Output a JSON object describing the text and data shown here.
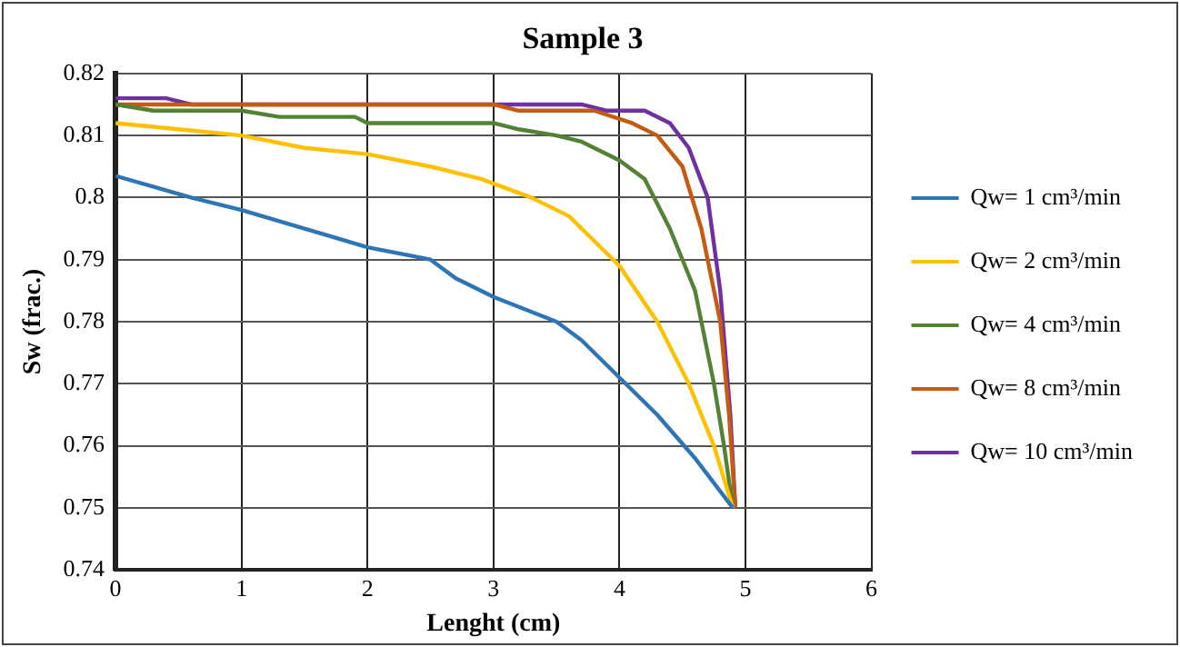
{
  "chart_data": {
    "type": "line",
    "title": "Sample 3",
    "xlabel": "Lenght (cm)",
    "ylabel": "Sw (frac.)",
    "xlim": [
      0,
      6
    ],
    "xticks": [
      0,
      1,
      2,
      3,
      4,
      5,
      6
    ],
    "ylim": [
      0.74,
      0.82
    ],
    "yticks": [
      0.74,
      0.75,
      0.76,
      0.77,
      0.78,
      0.79,
      0.8,
      0.81,
      0.82
    ],
    "grid": true,
    "legend": "right",
    "marker": "none",
    "series": [
      {
        "name": "Qw= 1 cm³/min",
        "color": "#2e75b6",
        "x": [
          0,
          0.6,
          1,
          1.5,
          2,
          2.5,
          2.7,
          3,
          3.5,
          3.7,
          4,
          4.3,
          4.6,
          4.9
        ],
        "values": [
          0.8035,
          0.8,
          0.798,
          0.795,
          0.792,
          0.79,
          0.787,
          0.784,
          0.78,
          0.777,
          0.771,
          0.765,
          0.758,
          0.75
        ]
      },
      {
        "name": "Qw= 2 cm³/min",
        "color": "#ffc000",
        "x": [
          0,
          0.5,
          1,
          1.5,
          2,
          2.5,
          2.9,
          3.3,
          3.6,
          3.8,
          4,
          4.3,
          4.55,
          4.75,
          4.9
        ],
        "values": [
          0.812,
          0.811,
          0.81,
          0.808,
          0.807,
          0.805,
          0.803,
          0.8,
          0.797,
          0.793,
          0.789,
          0.78,
          0.77,
          0.76,
          0.75
        ]
      },
      {
        "name": "Qw= 4 cm³/min",
        "color": "#548235",
        "x": [
          0,
          0.3,
          1,
          1.3,
          1.9,
          2,
          3,
          3.2,
          3.5,
          3.7,
          4,
          4.2,
          4.4,
          4.6,
          4.75,
          4.83,
          4.9
        ],
        "values": [
          0.815,
          0.814,
          0.814,
          0.813,
          0.813,
          0.812,
          0.812,
          0.811,
          0.81,
          0.809,
          0.806,
          0.803,
          0.795,
          0.785,
          0.77,
          0.76,
          0.75
        ]
      },
      {
        "name": "Qw= 8 cm³/min",
        "color": "#c55a11",
        "x": [
          0,
          3,
          3.2,
          3.8,
          4.1,
          4.3,
          4.5,
          4.65,
          4.8,
          4.87,
          4.92
        ],
        "values": [
          0.815,
          0.815,
          0.814,
          0.814,
          0.812,
          0.81,
          0.805,
          0.795,
          0.78,
          0.765,
          0.75
        ]
      },
      {
        "name": "Qw= 10 cm³/min",
        "color": "#7030a0",
        "x": [
          0,
          0.4,
          0.6,
          3.7,
          3.9,
          4.2,
          4.4,
          4.55,
          4.7,
          4.8,
          4.88,
          4.92
        ],
        "values": [
          0.816,
          0.816,
          0.815,
          0.815,
          0.814,
          0.814,
          0.812,
          0.808,
          0.8,
          0.785,
          0.765,
          0.75
        ]
      }
    ]
  }
}
